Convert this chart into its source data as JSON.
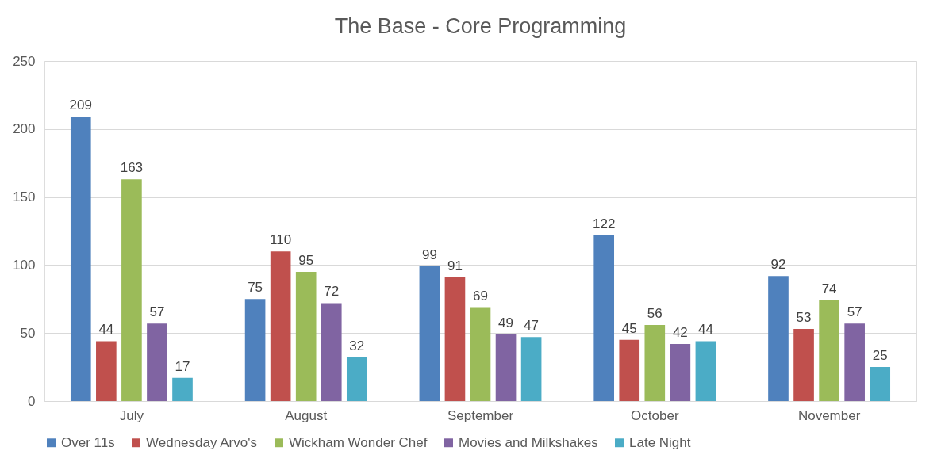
{
  "chart_data": {
    "type": "bar",
    "title": "The Base - Core Programming",
    "categories": [
      "July",
      "August",
      "September",
      "October",
      "November"
    ],
    "series": [
      {
        "name": "Over 11s",
        "color": "#4f81bd",
        "values": [
          209,
          75,
          99,
          122,
          92
        ]
      },
      {
        "name": "Wednesday Arvo's",
        "color": "#c0504d",
        "values": [
          44,
          110,
          91,
          45,
          53
        ]
      },
      {
        "name": "Wickham Wonder Chef",
        "color": "#9bbb59",
        "values": [
          163,
          95,
          69,
          56,
          74
        ]
      },
      {
        "name": "Movies and Milkshakes",
        "color": "#8064a2",
        "values": [
          57,
          72,
          49,
          42,
          57
        ]
      },
      {
        "name": "Late Night",
        "color": "#4bacc6",
        "values": [
          17,
          32,
          47,
          44,
          25
        ]
      }
    ],
    "ylim": [
      0,
      250
    ],
    "yticks": [
      0,
      50,
      100,
      150,
      200,
      250
    ],
    "grid": "y",
    "legend": "bottom",
    "data_labels": true
  }
}
